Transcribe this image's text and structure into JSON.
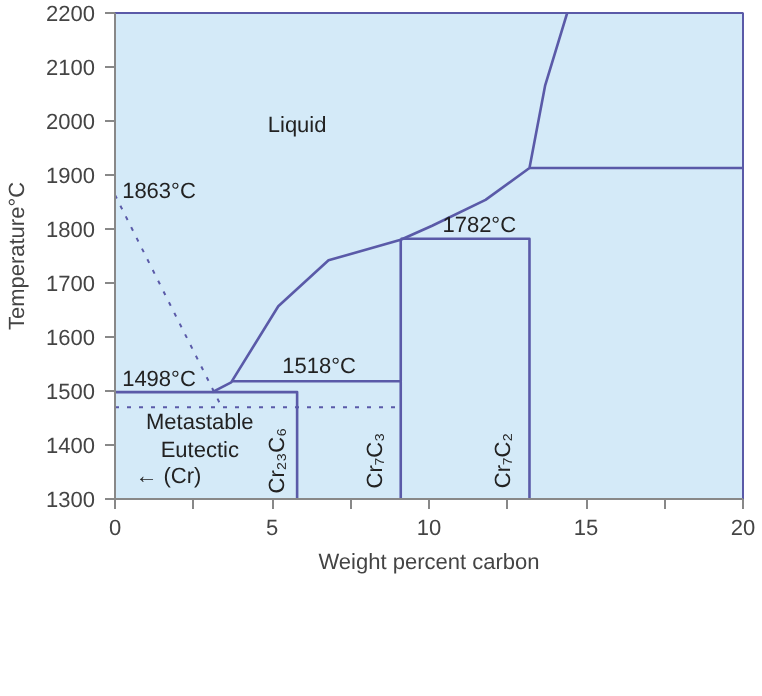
{
  "chart_data": {
    "type": "line",
    "xlabel": "Weight percent carbon",
    "ylabel": "Temperature°C",
    "xlim": [
      0,
      20
    ],
    "ylim": [
      1300,
      2200
    ],
    "xticks": [
      0,
      {
        "value": 2.5,
        "label": null
      },
      5,
      {
        "value": 7.5,
        "label": null
      },
      10,
      {
        "value": 12.5,
        "label": null
      },
      15,
      {
        "value": 17.5,
        "label": null
      },
      20
    ],
    "yticks": [
      1300,
      1400,
      1500,
      1600,
      1700,
      1800,
      1900,
      2000,
      2100,
      2200
    ],
    "grid": false,
    "marker": "none",
    "series": [
      {
        "color": "#5a5aa8",
        "line_style": "dotted",
        "x": [
          0,
          3.4
        ],
        "values": [
          1863,
          1470
        ]
      },
      {
        "color": "#5a5aa8",
        "line_style": "dotted",
        "x": [
          0,
          9.1
        ],
        "values": [
          1470,
          1470
        ]
      },
      {
        "color": "#5a5aa8",
        "line_style": "solid",
        "x": [
          3.1,
          3.7,
          5.2,
          6.8,
          9.1,
          10.1,
          11.8,
          13.2,
          13.7,
          14.4
        ],
        "values": [
          1498,
          1516,
          1657,
          1742,
          1780,
          1806,
          1854,
          1913,
          2066,
          2200
        ]
      },
      {
        "color": "#5a5aa8",
        "line_style": "solid",
        "x": [
          0,
          5.8,
          5.8
        ],
        "values": [
          1498,
          1498,
          1300
        ]
      },
      {
        "color": "#5a5aa8",
        "line_style": "solid",
        "x": [
          3.7,
          9.1,
          9.1,
          9.1
        ],
        "values": [
          1518,
          1518,
          1780,
          1300
        ]
      },
      {
        "color": "#5a5aa8",
        "line_style": "solid",
        "x": [
          9.1,
          13.2,
          13.2
        ],
        "values": [
          1782,
          1782,
          1300
        ]
      },
      {
        "color": "#5a5aa8",
        "line_style": "solid",
        "x": [
          13.2,
          20
        ],
        "values": [
          1913,
          1913
        ]
      }
    ],
    "annotations": [
      "Liquid",
      "1863°C",
      "1498°C",
      "1518°C",
      "1782°C",
      "Metastable\nEutectic",
      "← (Cr)",
      "Cr₂₃C₆",
      "Cr₇C₃",
      "Cr₇C₂"
    ]
  }
}
